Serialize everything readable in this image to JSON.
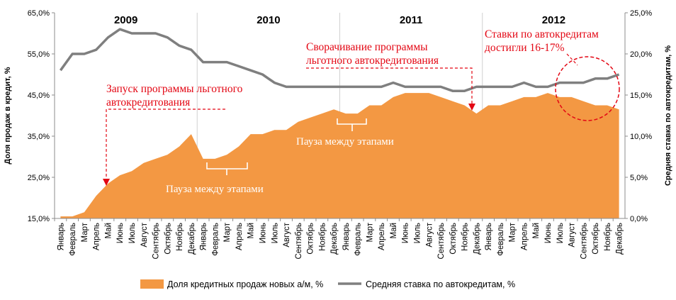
{
  "chart_data": {
    "type": "area",
    "categories": [
      "Январь",
      "Февраль",
      "Март",
      "Апрель",
      "Май",
      "Июнь",
      "Июль",
      "Август",
      "Сентябрь",
      "Октябрь",
      "Ноябрь",
      "Декабрь",
      "Январь",
      "Февраль",
      "Март",
      "Апрель",
      "Май",
      "Июнь",
      "Июль",
      "Август",
      "Сентябрь",
      "Октябрь",
      "Ноябрь",
      "Декабрь",
      "Январь",
      "Февраль",
      "Март",
      "Апрель",
      "Май",
      "Июнь",
      "Июль",
      "Август",
      "Сентябрь",
      "Октябрь",
      "Ноябрь",
      "Декабрь",
      "Январь",
      "Февраль",
      "Март",
      "Апрель",
      "Май",
      "Июнь",
      "Июль",
      "Август",
      "Сентябрь",
      "Октябрь",
      "Ноябрь",
      "Декабрь"
    ],
    "years": [
      "2009",
      "2010",
      "2011",
      "2012"
    ],
    "series": [
      {
        "name": "Доля кредитных продаж новых а/м, %",
        "type": "area",
        "axis": "left",
        "color": "#f39843",
        "values": [
          15.5,
          15.5,
          16.5,
          20.5,
          23.5,
          25.5,
          26.5,
          28.5,
          29.5,
          30.5,
          32.5,
          35.5,
          29.5,
          29.5,
          30.5,
          32.5,
          35.5,
          35.5,
          36.5,
          36.5,
          38.5,
          39.5,
          40.5,
          41.5,
          40.5,
          40.5,
          42.5,
          42.5,
          44.5,
          45.5,
          45.5,
          45.5,
          44.5,
          43.5,
          42.5,
          40.5,
          42.5,
          42.5,
          43.5,
          44.5,
          44.5,
          45.5,
          44.5,
          44.5,
          43.5,
          42.5,
          42.5,
          41.5
        ]
      },
      {
        "name": "Средняя ставка по автокредитам,  %",
        "type": "line",
        "axis": "right",
        "color": "#7f7f7f",
        "values": [
          18.0,
          20.0,
          20.0,
          20.5,
          22.0,
          23.0,
          22.5,
          22.5,
          22.5,
          22.0,
          21.0,
          20.5,
          19.0,
          19.0,
          19.0,
          18.5,
          18.0,
          17.5,
          16.5,
          16.0,
          16.0,
          16.0,
          16.0,
          16.0,
          16.0,
          16.0,
          16.0,
          16.0,
          16.5,
          16.0,
          16.0,
          16.0,
          16.0,
          15.5,
          15.5,
          16.0,
          16.0,
          16.0,
          16.0,
          16.5,
          16.0,
          16.0,
          16.5,
          16.5,
          16.5,
          17.0,
          17.0,
          17.5
        ]
      }
    ],
    "ylabel_left": "Доля продаж в кредит, %",
    "ylabel_right": "Средняя ставка по автокредитам,  %",
    "y_left_ticks": [
      "15,0%",
      "25,0%",
      "35,0%",
      "45,0%",
      "55,0%",
      "65,0%"
    ],
    "y_right_ticks": [
      "0,0%",
      "5,0%",
      "10,0%",
      "15,0%",
      "20,0%",
      "25,0%"
    ],
    "ylim_left": [
      15,
      65
    ],
    "ylim_right": [
      0,
      25
    ],
    "grid": false,
    "legend_position": "bottom",
    "annotations": {
      "launch": [
        "Запуск программы льготного",
        "автокредитования"
      ],
      "wind_down": [
        "Сворачивание программы",
        "льготного автокредитования"
      ],
      "rates": [
        "Ставки по автокредитам",
        "достигли 16-17%"
      ],
      "pause_1": "Пауза между этапами",
      "pause_2": "Пауза между этапами"
    }
  }
}
